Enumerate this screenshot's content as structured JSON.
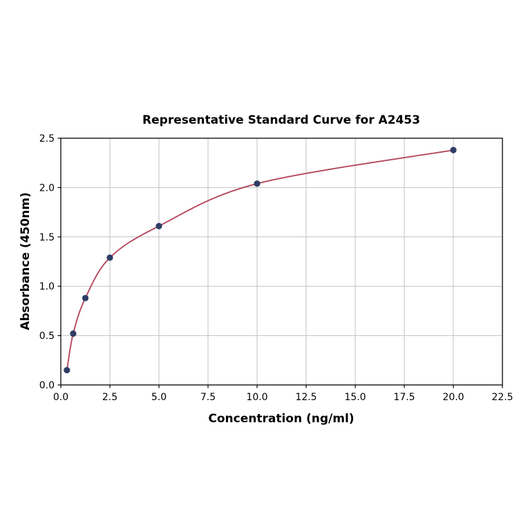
{
  "chart_data": {
    "type": "scatter",
    "title": "Representative Standard Curve for A2453",
    "xlabel": "Concentration (ng/ml)",
    "ylabel": "Absorbance (450nm)",
    "xlim": [
      0,
      22.5
    ],
    "ylim": [
      0,
      2.5
    ],
    "xticks": [
      0.0,
      2.5,
      5.0,
      7.5,
      10.0,
      12.5,
      15.0,
      17.5,
      20.0,
      22.5
    ],
    "xtick_labels": [
      "0.0",
      "2.5",
      "5.0",
      "7.5",
      "10.0",
      "12.5",
      "15.0",
      "17.5",
      "20.0",
      "22.5"
    ],
    "yticks": [
      0.0,
      0.5,
      1.0,
      1.5,
      2.0,
      2.5
    ],
    "ytick_labels": [
      "0.0",
      "0.5",
      "1.0",
      "1.5",
      "2.0",
      "2.5"
    ],
    "grid": true,
    "legend": "none",
    "series": [
      {
        "name": "standard-curve",
        "x": [
          0.31,
          0.63,
          1.25,
          2.5,
          5.0,
          10.0,
          20.0
        ],
        "y": [
          0.15,
          0.52,
          0.88,
          1.29,
          1.61,
          2.04,
          2.38
        ]
      }
    ],
    "colors": {
      "fit_line": "#b5485d",
      "data_point": "#2e3d66",
      "grid_line": "#c2c2c2",
      "axis_border": "#000000",
      "background": "#ffffff"
    }
  }
}
